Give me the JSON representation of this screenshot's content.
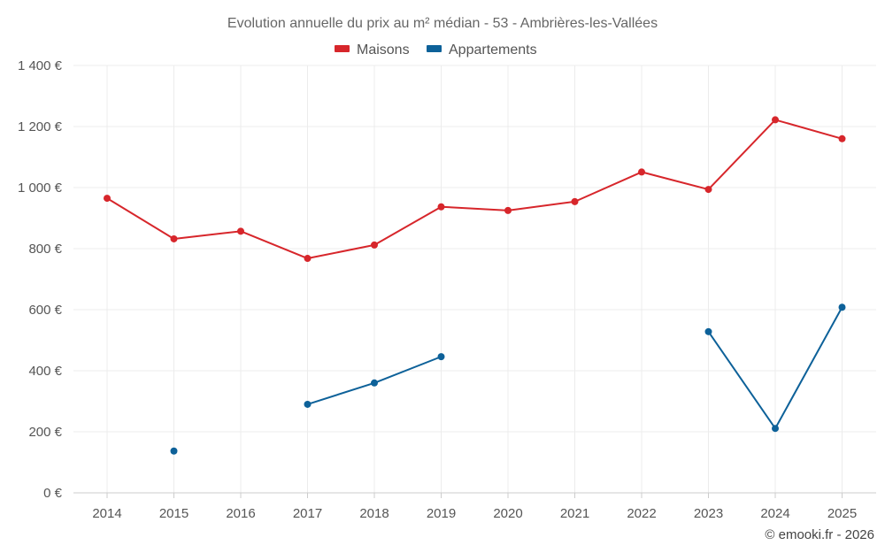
{
  "chart_data": {
    "type": "line",
    "title": "Evolution annuelle du prix au m² médian - 53 - Ambrières-les-Vallées",
    "categories": [
      "2014",
      "2015",
      "2016",
      "2017",
      "2018",
      "2019",
      "2020",
      "2021",
      "2022",
      "2023",
      "2024",
      "2025"
    ],
    "y_ticks": [
      "0 €",
      "200 €",
      "400 €",
      "600 €",
      "800 €",
      "1 000 €",
      "1 200 €",
      "1 400 €"
    ],
    "ylim": [
      0,
      1400
    ],
    "ystep": 200,
    "grid": true,
    "legend_position": "top-center",
    "series": [
      {
        "name": "Maisons",
        "color": "#d7262b",
        "values": [
          965,
          832,
          857,
          768,
          812,
          937,
          925,
          954,
          1051,
          994,
          1222,
          1160
        ]
      },
      {
        "name": "Appartements",
        "color": "#0d6199",
        "values": [
          null,
          137,
          null,
          290,
          360,
          446,
          null,
          null,
          null,
          528,
          211,
          608
        ]
      }
    ]
  },
  "credit": "© emooki.fr - 2026"
}
